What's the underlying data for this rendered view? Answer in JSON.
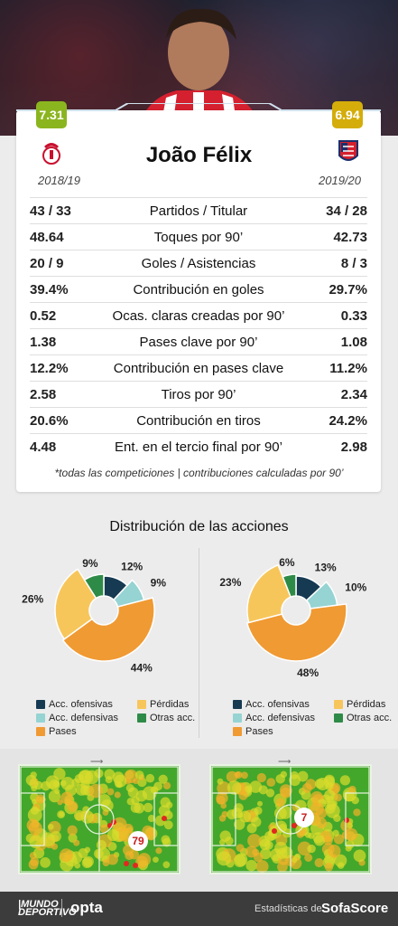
{
  "player": {
    "name": "João Félix",
    "left_rating": "7.31",
    "right_rating": "6.94",
    "left_season": "2018/19",
    "right_season": "2019/20",
    "left_club_icon": "benfica-crest",
    "right_club_icon": "atletico-madrid-crest"
  },
  "stats": [
    {
      "label": "Partidos / Titular",
      "left": "43 / 33",
      "right": "34 / 28"
    },
    {
      "label": "Toques por 90’",
      "left": "48.64",
      "right": "42.73"
    },
    {
      "label": "Goles / Asistencias",
      "left": "20 / 9",
      "right": "8 / 3"
    },
    {
      "label": "Contribución en goles",
      "left": "39.4%",
      "right": "29.7%"
    },
    {
      "label": "Ocas. claras creadas por 90’",
      "left": "0.52",
      "right": "0.33"
    },
    {
      "label": "Pases clave por 90’",
      "left": "1.38",
      "right": "1.08"
    },
    {
      "label": "Contribución en pases clave",
      "left": "12.2%",
      "right": "11.2%"
    },
    {
      "label": "Tiros por 90’",
      "left": "2.58",
      "right": "2.34"
    },
    {
      "label": "Contribución en tiros",
      "left": "20.6%",
      "right": "24.2%"
    },
    {
      "label": "Ent. en el tercio final por 90’",
      "left": "4.48",
      "right": "2.98"
    }
  ],
  "note": "*todas las competiciones | contribuciones calculadas por 90’",
  "colors": {
    "ofensivas": "#163a52",
    "defensivas": "#96d3d3",
    "pases": "#f09a33",
    "perdidas": "#f7c65b",
    "otras": "#2e8b47"
  },
  "chart_data": [
    {
      "type": "pie",
      "title": "Distribución de las acciones",
      "categories": [
        "Acc. ofensivas",
        "Acc. defensivas",
        "Pases",
        "Pérdidas",
        "Otras acc."
      ],
      "values": [
        12,
        9,
        44,
        26,
        9
      ],
      "labels": [
        "12%",
        "9%",
        "44%",
        "26%",
        "9%"
      ]
    },
    {
      "type": "pie",
      "categories": [
        "Acc. ofensivas",
        "Acc. defensivas",
        "Pases",
        "Pérdidas",
        "Otras acc."
      ],
      "values": [
        13,
        10,
        48,
        23,
        6
      ],
      "labels": [
        "13%",
        "10%",
        "48%",
        "23%",
        "6%"
      ]
    },
    {
      "type": "heatmap",
      "badge": "79"
    },
    {
      "type": "heatmap",
      "badge": "7"
    }
  ],
  "legend": {
    "ofensivas": "Acc. ofensivas",
    "perdidas": "Pérdidas",
    "defensivas": "Acc. defensivas",
    "otras": "Otras acc.",
    "pases": "Pases"
  },
  "footer": {
    "brand_left": "opta",
    "credit": "Estadísticas de",
    "brand_right": "SofaScore"
  }
}
